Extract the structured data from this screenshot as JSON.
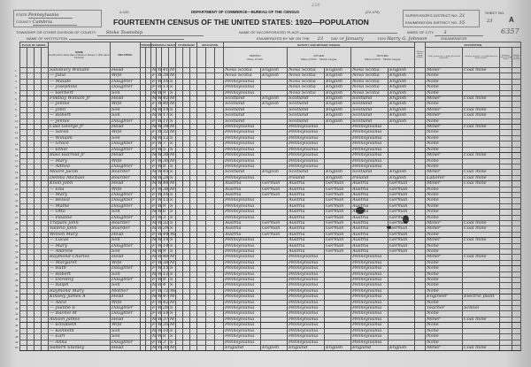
{
  "header": {
    "form_number": "4-120",
    "form_code": "(22-478)",
    "department": "DEPARTMENT OF COMMERCE—BUREAU OF THE CENSUS",
    "title": "FOURTEENTH CENSUS OF THE UNITED STATES: 1920—POPULATION",
    "stamp_top": "220",
    "state_label": "STATE",
    "state": "Pennsylvania",
    "county_label": "COUNTY",
    "county": "Cambria",
    "township_label": "TOWNSHIP OR OTHER DIVISION OF COUNTY",
    "township": "Stoke Township",
    "place_label": "NAME OF INCORPORATED PLACE",
    "institution_label": "NAME OF INSTITUTION",
    "supervisor_label": "SUPERVISOR'S DISTRICT NO.",
    "supervisor": "21",
    "enumeration_label": "ENUMERATION DISTRICT NO.",
    "enumeration": "15",
    "sheet_label": "SHEET NO.",
    "sheet": "23",
    "sheet_side": "A",
    "ward_label": "WARD OF CITY",
    "ward": "3",
    "enumerated_label": "ENUMERATED BY ME ON THE",
    "day": "23",
    "day_of_label": "DAY OF",
    "month": "January",
    "year": "1920",
    "enumerator": "Harry G. Johnson",
    "enumerator_label": "ENUMERATOR",
    "stamp_number": "6357"
  },
  "columns": {
    "abode": "PLACE OF ABODE.",
    "name": "NAME",
    "name_note": "of each person whose place of abode on January 1, 1920, was in this family.",
    "relation": "RELATION.",
    "tenure": "TENURE.",
    "personal": "PERSONAL DESCRIPTION.",
    "citizenship": "CITIZENSHIP.",
    "education": "EDUCATION.",
    "nativity": "NATIVITY AND MOTHER TONGUE.",
    "person": "PERSON.",
    "father": "FATHER.",
    "mother": "MOTHER.",
    "place_of_birth": "Place of birth.",
    "mother_tongue": "Mother tongue.",
    "english": "Whether able to speak English.",
    "occupation": "OCCUPATION.",
    "trade": "Trade, profession, or particular kind of work done.",
    "industry": "Industry, business, or establishment in which at work.",
    "class": "Employer, salary or wage worker",
    "farm": "Number of farm schedule"
  },
  "rows": [
    [
      "Salisbury William",
      "Head",
      "M",
      "W",
      "41",
      "M",
      "Nova Scotia",
      "English",
      "Nova Scotia",
      "English",
      "Nova Scotia",
      "English",
      "Miner",
      "Coal mine"
    ],
    [
      "— Julia",
      "Wife",
      "F",
      "W",
      "39",
      "M",
      "Nova Scotia",
      "English",
      "Nova Scotia",
      "English",
      "Nova Scotia",
      "English",
      "None",
      ""
    ],
    [
      "— Maude",
      "Daughter",
      "F",
      "W",
      "16",
      "S",
      "Pennsylvania",
      "",
      "Nova Scotia",
      "English",
      "Nova Scotia",
      "English",
      "None",
      ""
    ],
    [
      "— Josephine",
      "Daughter",
      "F",
      "W",
      "13",
      "S",
      "Pennsylvania",
      "",
      "Nova Scotia",
      "English",
      "Nova Scotia",
      "English",
      "None",
      ""
    ],
    [
      "— Herbert",
      "Son",
      "M",
      "W",
      "9",
      "S",
      "Pennsylvania",
      "",
      "Nova Scotia",
      "English",
      "Nova Scotia",
      "English",
      "None",
      ""
    ],
    [
      "Findlay William Jr",
      "Head",
      "M",
      "W",
      "42",
      "M",
      "Scotland",
      "English",
      "Scotland",
      "English",
      "Scotland",
      "English",
      "Miner",
      "Coal mine"
    ],
    [
      "— Jennie",
      "Wife",
      "F",
      "W",
      "40",
      "M",
      "Scotland",
      "English",
      "Scotland",
      "English",
      "Scotland",
      "English",
      "None",
      ""
    ],
    [
      "— John",
      "Son",
      "M",
      "W",
      "19",
      "S",
      "Scotland",
      "",
      "Scotland",
      "English",
      "Scotland",
      "English",
      "Miner",
      "Coal mine"
    ],
    [
      "— Robert",
      "Son",
      "M",
      "W",
      "17",
      "S",
      "Scotland",
      "",
      "Scotland",
      "English",
      "Scotland",
      "English",
      "Miner",
      "Coal mine"
    ],
    [
      "— Jennie",
      "Daughter",
      "F",
      "W",
      "11",
      "S",
      "Scotland",
      "",
      "Scotland",
      "English",
      "Scotland",
      "English",
      "None",
      ""
    ],
    [
      "Cass George Jr",
      "Head",
      "M",
      "W",
      "34",
      "M",
      "Pennsylvania",
      "",
      "Pennsylvania",
      "",
      "Pennsylvania",
      "",
      "Miner",
      "Coal mine"
    ],
    [
      "— Sarah",
      "Wife",
      "F",
      "W",
      "32",
      "M",
      "Pennsylvania",
      "",
      "Pennsylvania",
      "",
      "Pennsylvania",
      "",
      "None",
      ""
    ],
    [
      "— William",
      "Son",
      "M",
      "W",
      "12",
      "S",
      "Pennsylvania",
      "",
      "Pennsylvania",
      "",
      "Pennsylvania",
      "",
      "None",
      ""
    ],
    [
      "— Grace",
      "Daughter",
      "F",
      "W",
      "7",
      "S",
      "Pennsylvania",
      "",
      "Pennsylvania",
      "",
      "Pennsylvania",
      "",
      "None",
      ""
    ],
    [
      "— Ethel",
      "Daughter",
      "F",
      "W",
      "5",
      "S",
      "Pennsylvania",
      "",
      "Pennsylvania",
      "",
      "Pennsylvania",
      "",
      "None",
      ""
    ],
    [
      "Ross Harrold Jr",
      "Head",
      "M",
      "W",
      "36",
      "M",
      "Pennsylvania",
      "",
      "Pennsylvania",
      "",
      "Pennsylvania",
      "",
      "Miner",
      "Coal mine"
    ],
    [
      "— Mary",
      "Wife",
      "F",
      "W",
      "30",
      "M",
      "Pennsylvania",
      "",
      "Pennsylvania",
      "",
      "Pennsylvania",
      "",
      "None",
      ""
    ],
    [
      "— Althea",
      "Daughter",
      "F",
      "W",
      "8",
      "S",
      "Pennsylvania",
      "",
      "Pennsylvania",
      "",
      "Pennsylvania",
      "",
      "None",
      ""
    ],
    [
      "Moore Jacob",
      "Boarder",
      "M",
      "W",
      "45",
      "S",
      "Scotland",
      "English",
      "Scotland",
      "English",
      "Scotland",
      "English",
      "Miner",
      "Coal mine"
    ],
    [
      "Dennis Michael",
      "Boarder",
      "M",
      "W",
      "28",
      "S",
      "Pennsylvania",
      "",
      "Ireland",
      "English",
      "Ireland",
      "English",
      "Laborer",
      "Coal mine"
    ],
    [
      "Knoll John",
      "Head",
      "M",
      "W",
      "48",
      "M",
      "Austria",
      "German",
      "Austria",
      "German",
      "Austria",
      "German",
      "Miner",
      "Coal mine"
    ],
    [
      "— Ella",
      "Wife",
      "F",
      "W",
      "38",
      "M",
      "Austria",
      "German",
      "Austria",
      "German",
      "Austria",
      "German",
      "None",
      ""
    ],
    [
      "— Mary",
      "Daughter",
      "F",
      "W",
      "16",
      "S",
      "Austria",
      "German",
      "Austria",
      "German",
      "Austria",
      "German",
      "None",
      ""
    ],
    [
      "— Bessie",
      "Daughter",
      "F",
      "W",
      "12",
      "S",
      "Pennsylvania",
      "",
      "Austria",
      "German",
      "Austria",
      "German",
      "None",
      ""
    ],
    [
      "— Mame",
      "Daughter",
      "F",
      "W",
      "9",
      "S",
      "Pennsylvania",
      "",
      "Austria",
      "German",
      "Austria",
      "German",
      "None",
      ""
    ],
    [
      "— Otto",
      "Son",
      "M",
      "W",
      "6",
      "S",
      "Pennsylvania",
      "",
      "Austria",
      "German",
      "Austria",
      "German",
      "None",
      ""
    ],
    [
      "— Pauline",
      "Daughter",
      "F",
      "W",
      "3",
      "S",
      "Pennsylvania",
      "",
      "Austria",
      "German",
      "Austria",
      "German",
      "None",
      ""
    ],
    [
      "Trapani John",
      "Boarder",
      "M",
      "W",
      "32",
      "S",
      "Austria",
      "German",
      "Austria",
      "German",
      "Austria",
      "German",
      "Miner",
      "Coal mine"
    ],
    [
      "Valerio John",
      "Boarder",
      "M",
      "W",
      "29",
      "S",
      "Austria",
      "German",
      "Austria",
      "German",
      "Austria",
      "German",
      "Miner",
      "Coal mine"
    ],
    [
      "Wilson Mary",
      "Head",
      "F",
      "W",
      "44",
      "Wd",
      "Austria",
      "German",
      "Austria",
      "German",
      "Austria",
      "German",
      "None",
      ""
    ],
    [
      "— Lucas",
      "Son",
      "M",
      "W",
      "19",
      "S",
      "Pennsylvania",
      "",
      "Austria",
      "German",
      "Austria",
      "German",
      "Miner",
      "Coal mine"
    ],
    [
      "— Mary",
      "Daughter",
      "F",
      "W",
      "14",
      "S",
      "Pennsylvania",
      "",
      "Austria",
      "German",
      "Austria",
      "German",
      "None",
      ""
    ],
    [
      "— Andrew",
      "Son",
      "M",
      "W",
      "9",
      "S",
      "Pennsylvania",
      "",
      "Austria",
      "German",
      "Austria",
      "German",
      "None",
      ""
    ],
    [
      "Raymond Charles",
      "Head",
      "M",
      "W",
      "40",
      "M",
      "Pennsylvania",
      "",
      "Pennsylvania",
      "",
      "Pennsylvania",
      "",
      "Miner",
      "Coal mine"
    ],
    [
      "— Margaret",
      "Wife",
      "F",
      "W",
      "38",
      "M",
      "Pennsylvania",
      "",
      "Pennsylvania",
      "",
      "Pennsylvania",
      "",
      "None",
      ""
    ],
    [
      "— Ruth",
      "Daughter",
      "F",
      "W",
      "15",
      "S",
      "Pennsylvania",
      "",
      "Pennsylvania",
      "",
      "Pennsylvania",
      "",
      "None",
      ""
    ],
    [
      "— Robert",
      "Son",
      "M",
      "W",
      "12",
      "S",
      "Pennsylvania",
      "",
      "Pennsylvania",
      "",
      "Pennsylvania",
      "",
      "None",
      ""
    ],
    [
      "— Dorothy",
      "Daughter",
      "F",
      "W",
      "8",
      "S",
      "Pennsylvania",
      "",
      "Pennsylvania",
      "",
      "Pennsylvania",
      "",
      "None",
      ""
    ],
    [
      "— Ralph",
      "Son",
      "M",
      "W",
      "4",
      "S",
      "Pennsylvania",
      "",
      "Pennsylvania",
      "",
      "Pennsylvania",
      "",
      "None",
      ""
    ],
    [
      "Raymond Mary",
      "Mother",
      "F",
      "W",
      "72",
      "Wd",
      "Pennsylvania",
      "",
      "Pennsylvania",
      "",
      "Pennsylvania",
      "",
      "None",
      ""
    ],
    [
      "Kinsely James A",
      "Head",
      "M",
      "W",
      "47",
      "M",
      "Pennsylvania",
      "",
      "Pennsylvania",
      "",
      "Pennsylvania",
      "",
      "Engineer",
      "Electric plant"
    ],
    [
      "— Alice",
      "Wife",
      "F",
      "W",
      "42",
      "M",
      "Pennsylvania",
      "",
      "Pennsylvania",
      "",
      "Pennsylvania",
      "",
      "None",
      ""
    ],
    [
      "— Joanne E",
      "Daughter",
      "F",
      "W",
      "20",
      "S",
      "Pennsylvania",
      "",
      "Pennsylvania",
      "",
      "Pennsylvania",
      "",
      "Teacher",
      "School"
    ],
    [
      "— Rachel M",
      "Daughter",
      "F",
      "W",
      "18",
      "S",
      "Pennsylvania",
      "",
      "Pennsylvania",
      "",
      "Pennsylvania",
      "",
      "None",
      ""
    ],
    [
      "Allison James",
      "Head",
      "M",
      "W",
      "37",
      "M",
      "Pennsylvania",
      "",
      "Pennsylvania",
      "",
      "Pennsylvania",
      "",
      "Miner",
      "Coal mine"
    ],
    [
      "— Elizabeth",
      "Wife",
      "F",
      "W",
      "35",
      "M",
      "Pennsylvania",
      "",
      "Pennsylvania",
      "",
      "Pennsylvania",
      "",
      "None",
      ""
    ],
    [
      "— Kenneth",
      "Son",
      "M",
      "W",
      "10",
      "S",
      "Pennsylvania",
      "",
      "Pennsylvania",
      "",
      "Pennsylvania",
      "",
      "None",
      ""
    ],
    [
      "— Earl",
      "Son",
      "M",
      "W",
      "8",
      "S",
      "Pennsylvania",
      "",
      "Pennsylvania",
      "",
      "Pennsylvania",
      "",
      "None",
      ""
    ],
    [
      "— Anna",
      "Daughter",
      "F",
      "W",
      "3",
      "S",
      "Pennsylvania",
      "",
      "Pennsylvania",
      "",
      "Pennsylvania",
      "",
      "None",
      ""
    ],
    [
      "Saltern Stanley",
      "Head",
      "M",
      "W",
      "30",
      "M",
      "England",
      "English",
      "England",
      "English",
      "England",
      "English",
      "Miner",
      "Coal mine"
    ]
  ]
}
